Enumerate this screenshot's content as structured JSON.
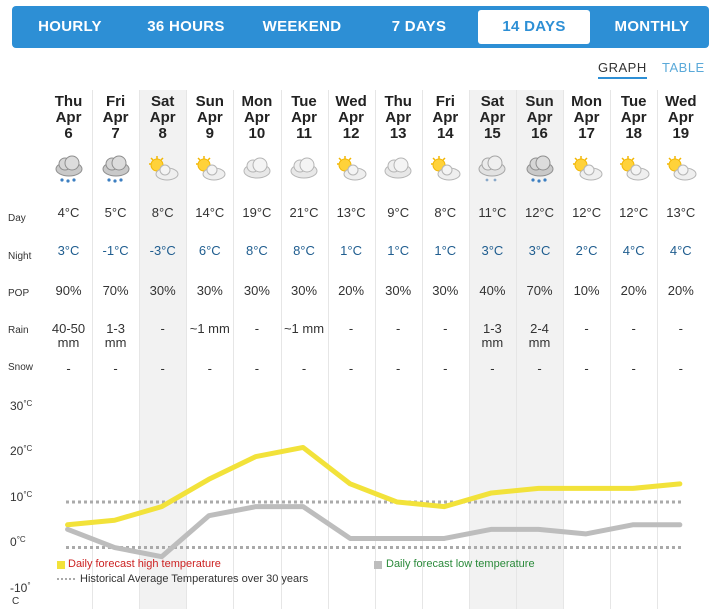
{
  "tabs": [
    {
      "label": "HOURLY",
      "active": false
    },
    {
      "label": "36 HOURS",
      "active": false
    },
    {
      "label": "WEEKEND",
      "active": false
    },
    {
      "label": "7 DAYS",
      "active": false
    },
    {
      "label": "14 DAYS",
      "active": true
    },
    {
      "label": "MONTHLY",
      "active": false
    }
  ],
  "views": {
    "graph": "GRAPH",
    "table": "TABLE",
    "active": "GRAPH"
  },
  "row_labels": {
    "day": "Day",
    "night": "Night",
    "pop": "POP",
    "rain": "Rain",
    "snow": "Snow"
  },
  "days": [
    {
      "dow": "Thu",
      "mon": "Apr",
      "date": "6",
      "icon": "rain-cloud-icon",
      "day": "4°C",
      "night": "3°C",
      "pop": "90%",
      "rain": "40-50 mm",
      "snow": "-",
      "weekend": false
    },
    {
      "dow": "Fri",
      "mon": "Apr",
      "date": "7",
      "icon": "rain-cloud-icon",
      "day": "5°C",
      "night": "-1°C",
      "pop": "70%",
      "rain": "1-3 mm",
      "snow": "-",
      "weekend": false
    },
    {
      "dow": "Sat",
      "mon": "Apr",
      "date": "8",
      "icon": "sun-cloud-icon",
      "day": "8°C",
      "night": "-3°C",
      "pop": "30%",
      "rain": "-",
      "snow": "-",
      "weekend": true
    },
    {
      "dow": "Sun",
      "mon": "Apr",
      "date": "9",
      "icon": "sun-cloud-icon",
      "day": "14°C",
      "night": "6°C",
      "pop": "30%",
      "rain": "~1 mm",
      "snow": "-",
      "weekend": false
    },
    {
      "dow": "Mon",
      "mon": "Apr",
      "date": "10",
      "icon": "cloud-icon",
      "day": "19°C",
      "night": "8°C",
      "pop": "30%",
      "rain": "-",
      "snow": "-",
      "weekend": false
    },
    {
      "dow": "Tue",
      "mon": "Apr",
      "date": "11",
      "icon": "cloud-icon",
      "day": "21°C",
      "night": "8°C",
      "pop": "30%",
      "rain": "~1 mm",
      "snow": "-",
      "weekend": false
    },
    {
      "dow": "Wed",
      "mon": "Apr",
      "date": "12",
      "icon": "sun-cloud-icon",
      "day": "13°C",
      "night": "1°C",
      "pop": "20%",
      "rain": "-",
      "snow": "-",
      "weekend": false
    },
    {
      "dow": "Thu",
      "mon": "Apr",
      "date": "13",
      "icon": "cloud-icon",
      "day": "9°C",
      "night": "1°C",
      "pop": "30%",
      "rain": "-",
      "snow": "-",
      "weekend": false
    },
    {
      "dow": "Fri",
      "mon": "Apr",
      "date": "14",
      "icon": "sun-cloud-icon",
      "day": "8°C",
      "night": "1°C",
      "pop": "30%",
      "rain": "-",
      "snow": "-",
      "weekend": false
    },
    {
      "dow": "Sat",
      "mon": "Apr",
      "date": "15",
      "icon": "rain-snow-cloud-icon",
      "day": "11°C",
      "night": "3°C",
      "pop": "40%",
      "rain": "1-3 mm",
      "snow": "-",
      "weekend": true
    },
    {
      "dow": "Sun",
      "mon": "Apr",
      "date": "16",
      "icon": "rain-cloud-icon",
      "day": "12°C",
      "night": "3°C",
      "pop": "70%",
      "rain": "2-4 mm",
      "snow": "-",
      "weekend": true
    },
    {
      "dow": "Mon",
      "mon": "Apr",
      "date": "17",
      "icon": "sun-cloud-icon",
      "day": "12°C",
      "night": "2°C",
      "pop": "10%",
      "rain": "-",
      "snow": "-",
      "weekend": false
    },
    {
      "dow": "Tue",
      "mon": "Apr",
      "date": "18",
      "icon": "sun-cloud-icon",
      "day": "12°C",
      "night": "4°C",
      "pop": "20%",
      "rain": "-",
      "snow": "-",
      "weekend": false
    },
    {
      "dow": "Wed",
      "mon": "Apr",
      "date": "19",
      "icon": "sun-cloud-icon",
      "day": "13°C",
      "night": "4°C",
      "pop": "20%",
      "rain": "-",
      "snow": "-",
      "weekend": false
    }
  ],
  "chart_data": {
    "type": "line",
    "x": [
      "Thu Apr 6",
      "Fri Apr 7",
      "Sat Apr 8",
      "Sun Apr 9",
      "Mon Apr 10",
      "Tue Apr 11",
      "Wed Apr 12",
      "Thu Apr 13",
      "Fri Apr 14",
      "Sat Apr 15",
      "Sun Apr 16",
      "Mon Apr 17",
      "Tue Apr 18",
      "Wed Apr 19"
    ],
    "series": [
      {
        "name": "Daily forecast high temperature",
        "values": [
          4,
          5,
          8,
          14,
          19,
          21,
          13,
          9,
          8,
          11,
          12,
          12,
          12,
          13
        ],
        "color": "#f2e23a"
      },
      {
        "name": "Daily forecast low temperature",
        "values": [
          3,
          -1,
          -3,
          6,
          8,
          8,
          1,
          1,
          1,
          3,
          3,
          2,
          4,
          4
        ],
        "color": "#bdbdbd"
      }
    ],
    "historical_average": {
      "name": "Historical Average Temperatures over 30 years",
      "high": 9,
      "low": -1,
      "color": "#aaaaaa"
    },
    "ylim": [
      -10,
      30
    ],
    "yticks": [
      {
        "value": 30,
        "label": "30",
        "unit": "°C"
      },
      {
        "value": 20,
        "label": "20",
        "unit": "°C"
      },
      {
        "value": 10,
        "label": "10",
        "unit": "°C"
      },
      {
        "value": 0,
        "label": "0",
        "unit": "°C"
      },
      {
        "value": -10,
        "label": "-10",
        "unit": "°"
      }
    ],
    "yunit": "C"
  }
}
